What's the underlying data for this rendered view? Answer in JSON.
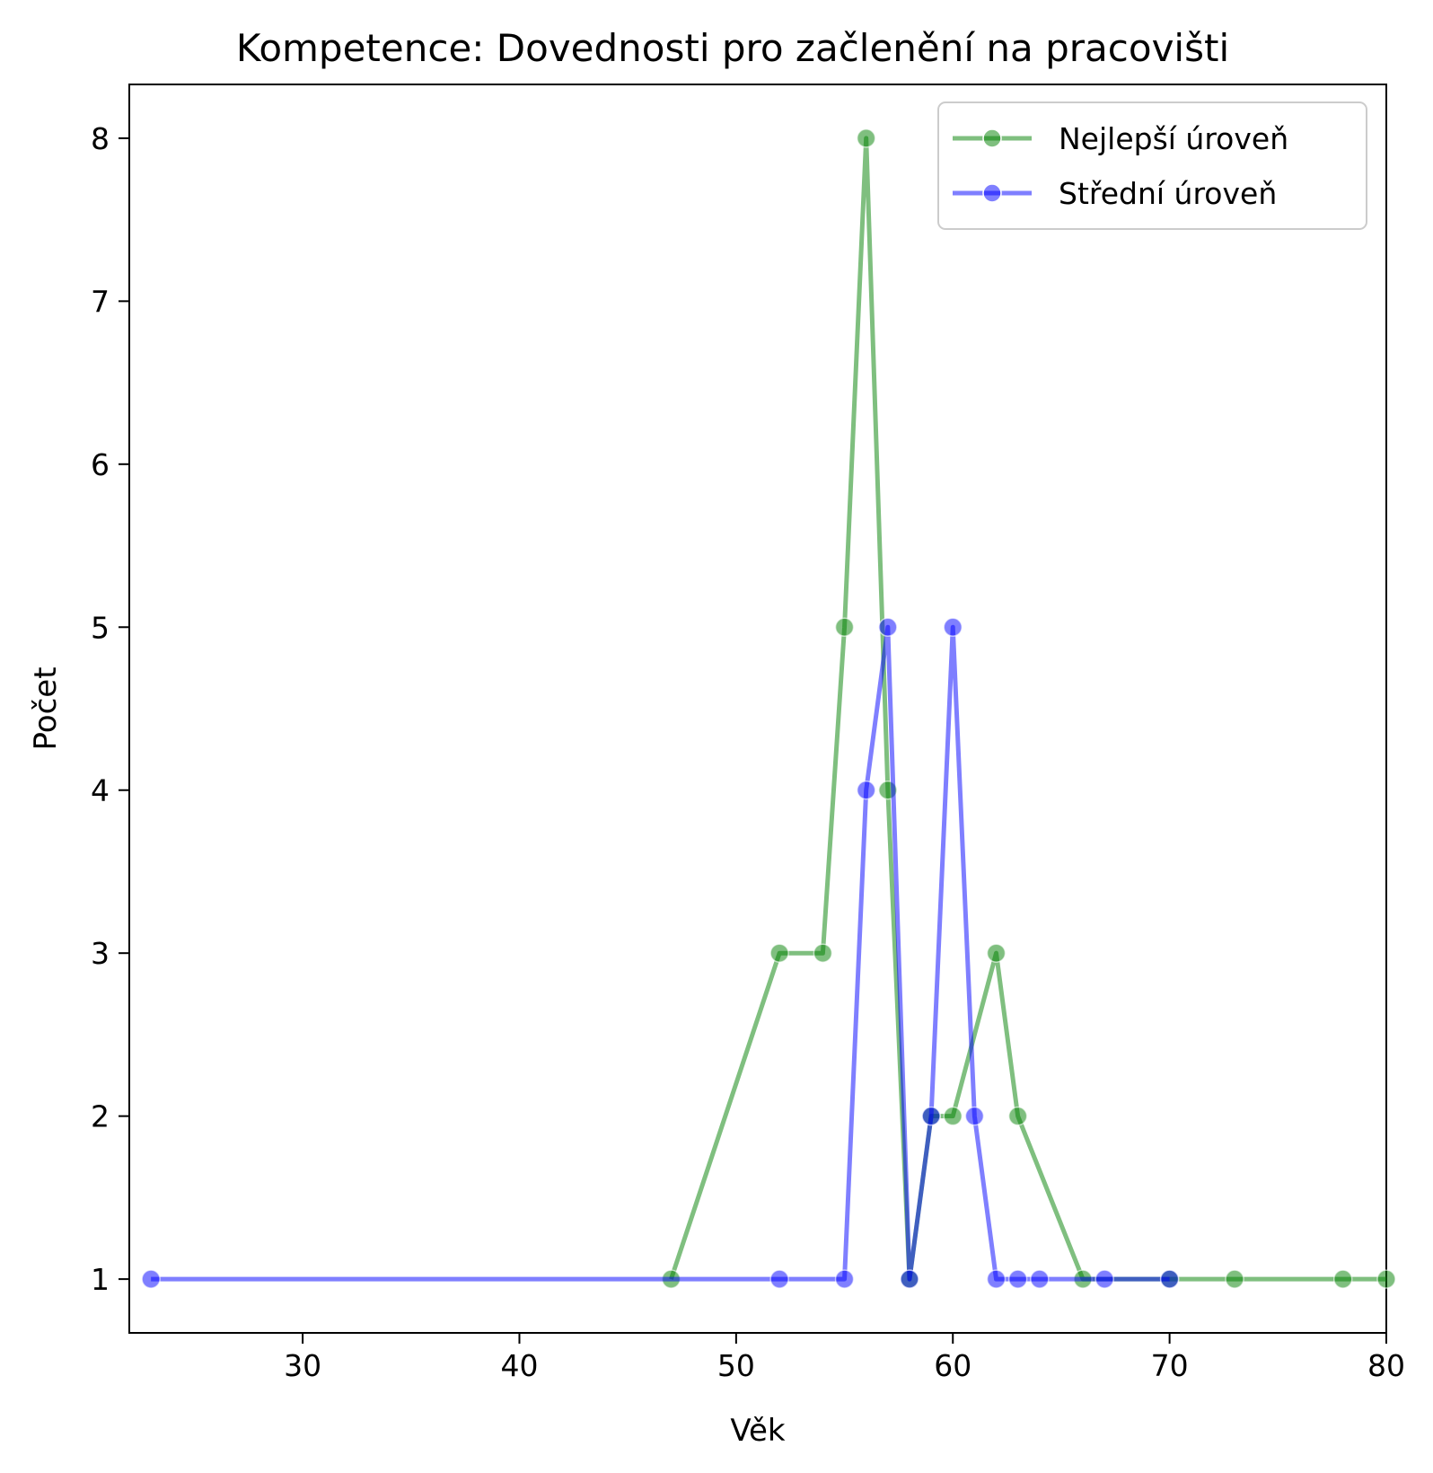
{
  "chart_data": {
    "type": "line",
    "title": "Kompetence: Dovednosti pro začlenění na pracovišti",
    "xlabel": "Věk",
    "ylabel": "Počet",
    "xlim": [
      22,
      80
    ],
    "ylim": [
      0.67,
      8.33
    ],
    "xticks": [
      30,
      40,
      50,
      60,
      70,
      80
    ],
    "yticks": [
      1,
      2,
      3,
      4,
      5,
      6,
      7,
      8
    ],
    "grid": false,
    "legend_position": "top-right",
    "series": [
      {
        "name": "Nejlepší úroveň",
        "color": "#008000",
        "x": [
          47,
          52,
          54,
          55,
          56,
          57,
          58,
          59,
          60,
          62,
          63,
          66,
          70,
          73,
          78,
          80
        ],
        "y": [
          1,
          3,
          3,
          5,
          8,
          4,
          1,
          2,
          2,
          3,
          2,
          1,
          1,
          1,
          1,
          1
        ]
      },
      {
        "name": "Střední úroveň",
        "color": "#0000ff",
        "x": [
          23,
          52,
          55,
          56,
          57,
          58,
          59,
          60,
          61,
          62,
          63,
          64,
          67,
          70
        ],
        "y": [
          1,
          1,
          1,
          4,
          5,
          1,
          2,
          5,
          2,
          1,
          1,
          1,
          1,
          1
        ]
      }
    ]
  }
}
